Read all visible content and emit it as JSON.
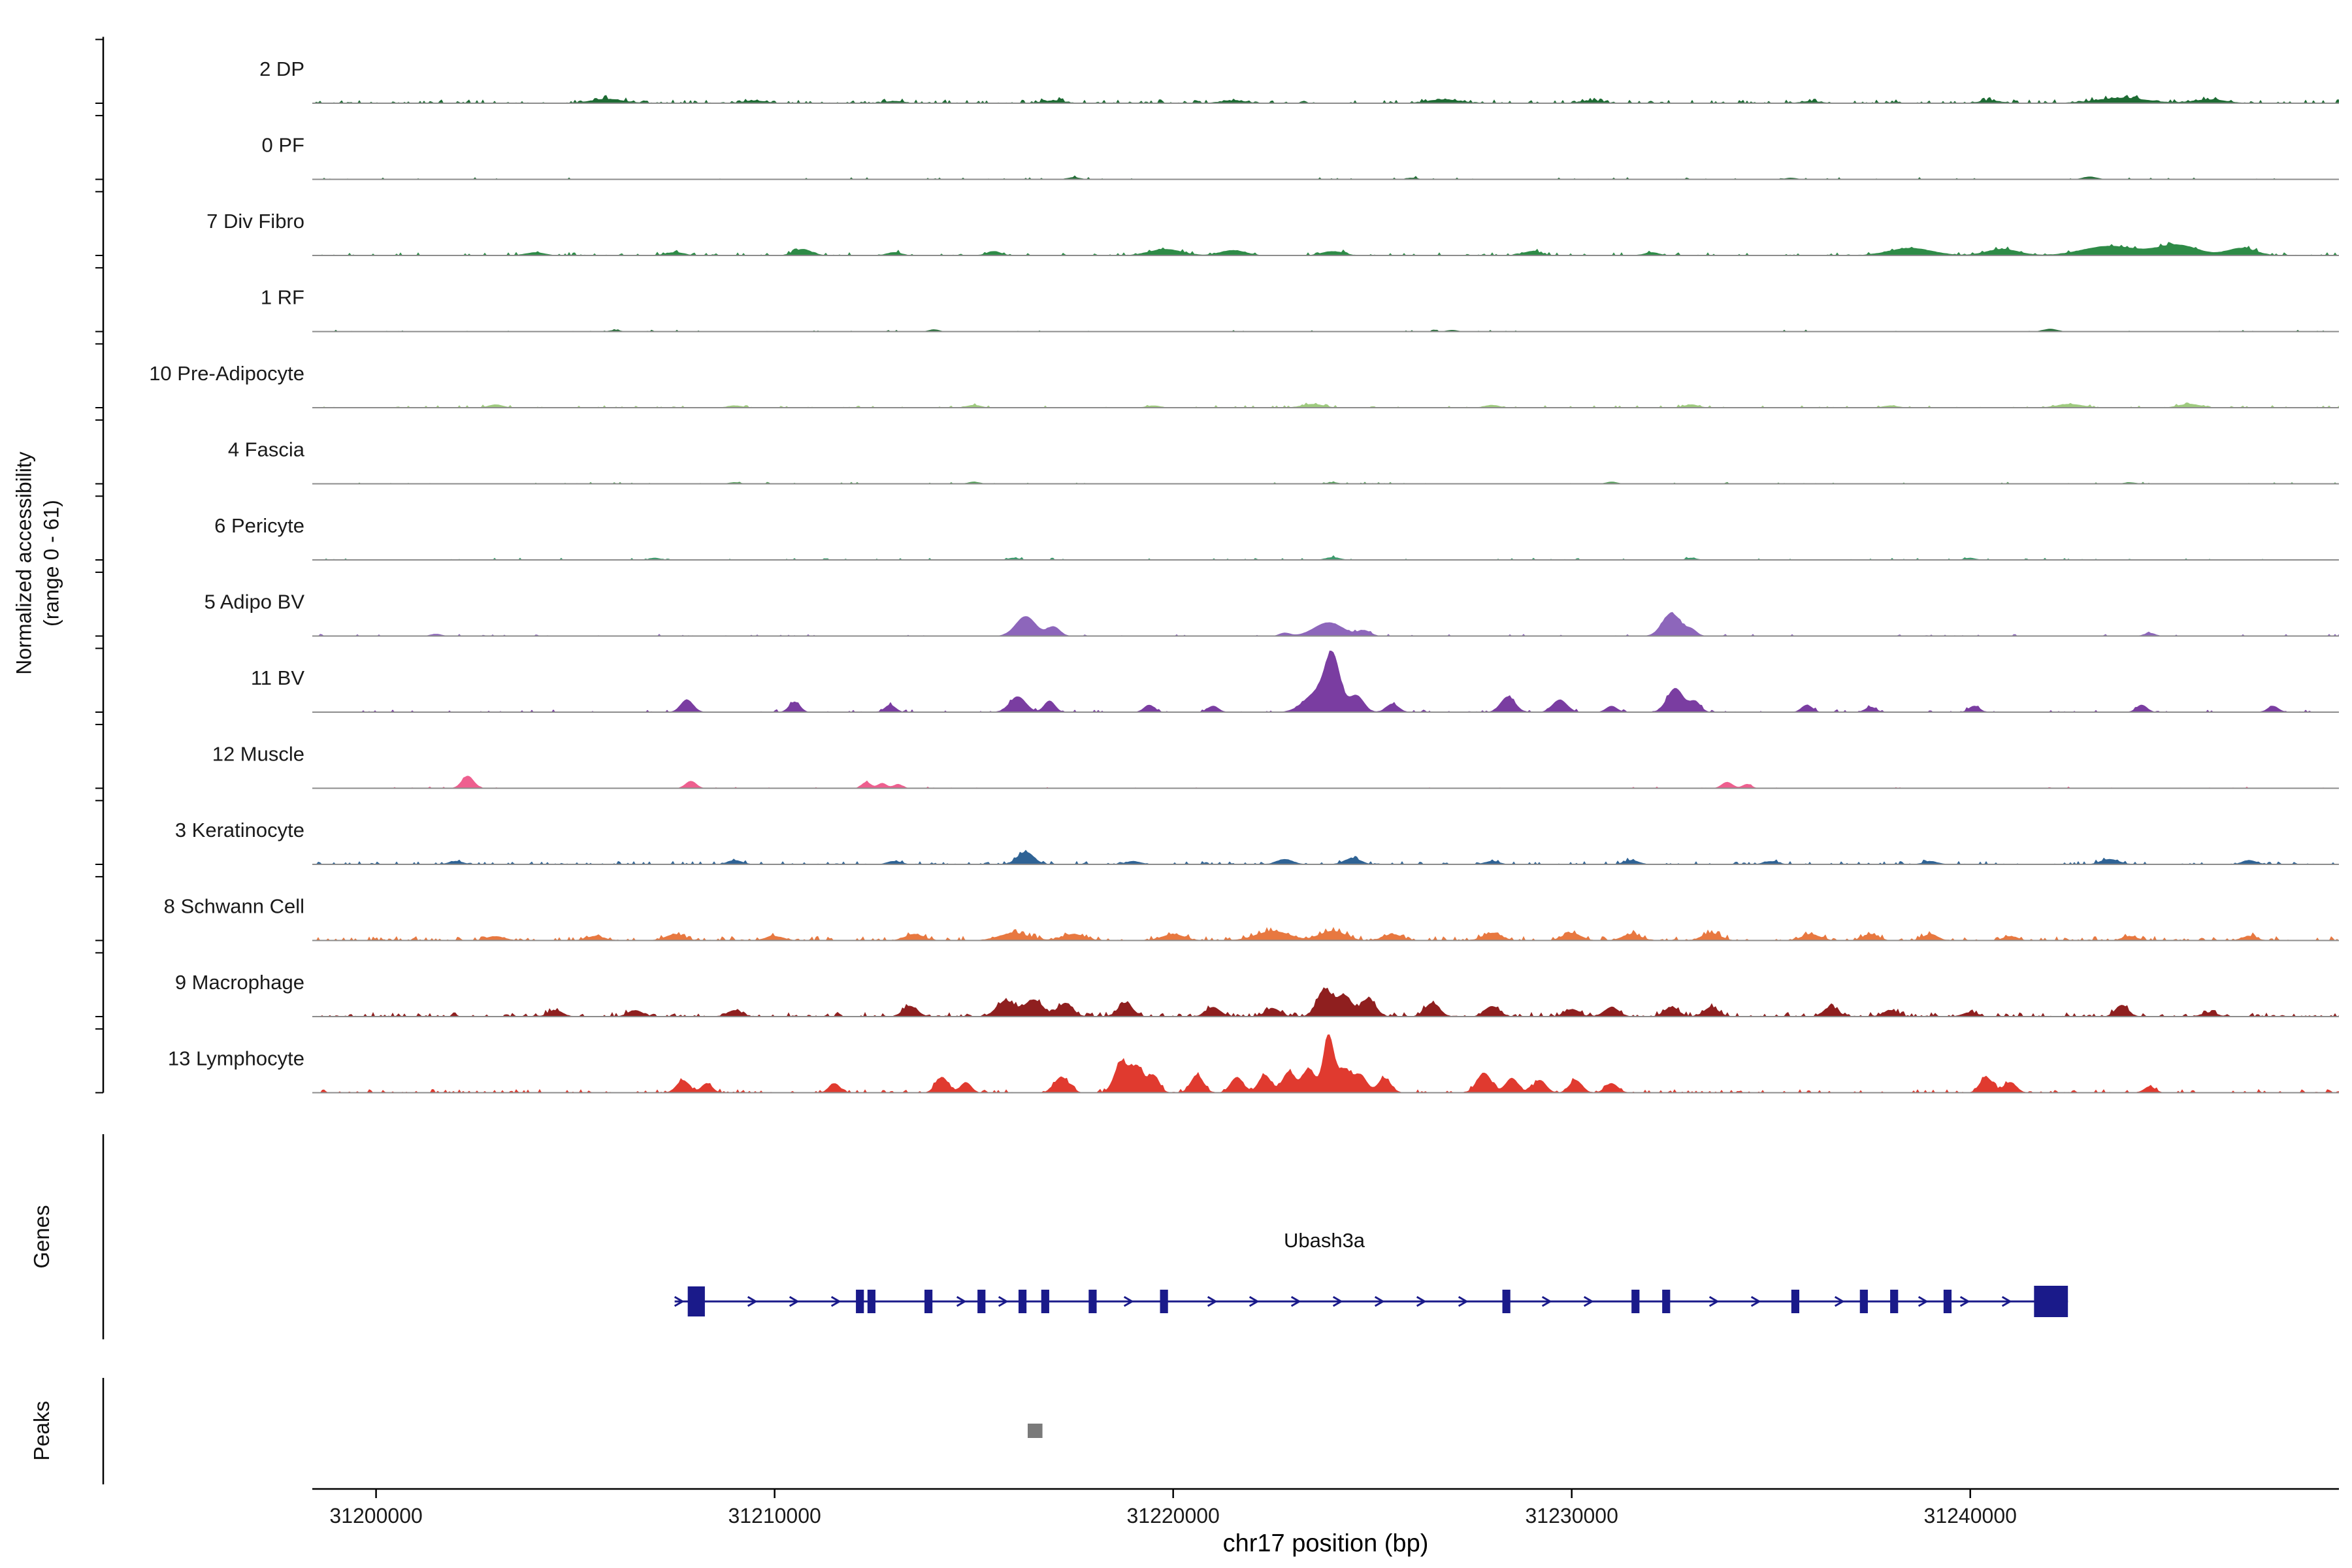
{
  "y_axis": {
    "title_line1": "Normalized accessibility",
    "title_line2": "(range 0 - 61)"
  },
  "x_axis": {
    "title": "chr17 position (bp)",
    "ticks": [
      {
        "pos": 31200000,
        "label": "31200000"
      },
      {
        "pos": 31210000,
        "label": "31210000"
      },
      {
        "pos": 31220000,
        "label": "31220000"
      },
      {
        "pos": 31230000,
        "label": "31230000"
      },
      {
        "pos": 31240000,
        "label": "31240000"
      }
    ]
  },
  "sections": {
    "genes_label": "Genes",
    "peaks_label": "Peaks"
  },
  "chart_data": {
    "type": "area",
    "title": "",
    "region": {
      "chrom": "chr17",
      "start": 31198400,
      "end": 31249250
    },
    "value_range": [
      0,
      61
    ],
    "tracks": [
      {
        "label": "2 DP",
        "color": "#1d6b33",
        "noise": {
          "amp": 1.4,
          "density": 0.5
        },
        "peaks": [
          [
            31205800,
            4,
            900
          ],
          [
            31209500,
            2.5,
            600
          ],
          [
            31213000,
            2,
            500
          ],
          [
            31217000,
            2.5,
            600
          ],
          [
            31221500,
            2.5,
            700
          ],
          [
            31226800,
            3.5,
            900
          ],
          [
            31230500,
            2.5,
            600
          ],
          [
            31236000,
            2,
            500
          ],
          [
            31240500,
            2.5,
            600
          ],
          [
            31243800,
            5,
            1400
          ],
          [
            31246000,
            3.5,
            900
          ]
        ]
      },
      {
        "label": "0 PF",
        "color": "#256f38",
        "noise": {
          "amp": 0.8,
          "density": 0.12
        },
        "peaks": [
          [
            31217500,
            2,
            350
          ],
          [
            31226000,
            1.5,
            300
          ],
          [
            31235500,
            1.5,
            300
          ],
          [
            31243000,
            2.5,
            400
          ]
        ]
      },
      {
        "label": "7 Div Fibro",
        "color": "#2e8b47",
        "noise": {
          "amp": 1.2,
          "density": 0.3
        },
        "peaks": [
          [
            31204000,
            3,
            500
          ],
          [
            31207500,
            3,
            500
          ],
          [
            31210700,
            6,
            500
          ],
          [
            31213000,
            3,
            400
          ],
          [
            31215500,
            4,
            400
          ],
          [
            31219800,
            6,
            900
          ],
          [
            31221500,
            5,
            700
          ],
          [
            31224000,
            4,
            600
          ],
          [
            31229000,
            4,
            500
          ],
          [
            31232000,
            3,
            400
          ],
          [
            31238500,
            7,
            1200
          ],
          [
            31240800,
            6,
            900
          ],
          [
            31243500,
            9,
            1500
          ],
          [
            31245200,
            10,
            1100
          ],
          [
            31246800,
            7,
            800
          ]
        ]
      },
      {
        "label": "1 RF",
        "color": "#256f38",
        "noise": {
          "amp": 0.7,
          "density": 0.12
        },
        "peaks": [
          [
            31206000,
            1.5,
            300
          ],
          [
            31214000,
            2,
            300
          ],
          [
            31227000,
            1.5,
            300
          ],
          [
            31242000,
            2.5,
            400
          ]
        ]
      },
      {
        "label": "10 Pre-Adipocyte",
        "color": "#9fcb7f",
        "noise": {
          "amp": 0.9,
          "density": 0.2
        },
        "peaks": [
          [
            31203000,
            3,
            400
          ],
          [
            31209000,
            2,
            400
          ],
          [
            31215000,
            2.5,
            400
          ],
          [
            31219500,
            2,
            400
          ],
          [
            31223500,
            3.5,
            600
          ],
          [
            31228000,
            2.5,
            400
          ],
          [
            31233000,
            3,
            400
          ],
          [
            31238000,
            2,
            400
          ],
          [
            31242500,
            3.5,
            700
          ],
          [
            31245500,
            3.5,
            600
          ]
        ]
      },
      {
        "label": "4 Fascia",
        "color": "#57a05c",
        "noise": {
          "amp": 0.7,
          "density": 0.12
        },
        "peaks": [
          [
            31209000,
            1.5,
            300
          ],
          [
            31215000,
            2,
            300
          ],
          [
            31224000,
            1.5,
            300
          ],
          [
            31231000,
            2,
            300
          ],
          [
            31244000,
            1.5,
            300
          ]
        ]
      },
      {
        "label": "6 Pericyte",
        "color": "#3e9b6e",
        "noise": {
          "amp": 0.8,
          "density": 0.15
        },
        "peaks": [
          [
            31207000,
            2,
            300
          ],
          [
            31216000,
            2,
            300
          ],
          [
            31224000,
            2.5,
            400
          ],
          [
            31233000,
            2,
            300
          ],
          [
            31240000,
            2,
            300
          ]
        ]
      },
      {
        "label": "5 Adipo BV",
        "color": "#8d66bb",
        "noise": {
          "amp": 0.8,
          "density": 0.15
        },
        "peaks": [
          [
            31201500,
            2,
            300
          ],
          [
            31216300,
            19,
            550
          ],
          [
            31217000,
            9,
            350
          ],
          [
            31222800,
            3,
            300
          ],
          [
            31223900,
            13,
            800
          ],
          [
            31224800,
            5,
            350
          ],
          [
            31232500,
            22,
            500
          ],
          [
            31233000,
            6,
            300
          ],
          [
            31244500,
            3,
            300
          ]
        ]
      },
      {
        "label": "11 BV",
        "color": "#7a3da1",
        "noise": {
          "amp": 1.0,
          "density": 0.25
        },
        "peaks": [
          [
            31207800,
            12,
            350
          ],
          [
            31210500,
            10,
            300
          ],
          [
            31212900,
            7,
            300
          ],
          [
            31216100,
            15,
            450
          ],
          [
            31216900,
            11,
            300
          ],
          [
            31219400,
            7,
            300
          ],
          [
            31221000,
            6,
            300
          ],
          [
            31223600,
            18,
            700
          ],
          [
            31224000,
            50,
            420
          ],
          [
            31224600,
            16,
            400
          ],
          [
            31225500,
            8,
            350
          ],
          [
            31228400,
            15,
            400
          ],
          [
            31229700,
            12,
            400
          ],
          [
            31231000,
            6,
            300
          ],
          [
            31232600,
            23,
            450
          ],
          [
            31233100,
            10,
            300
          ],
          [
            31235900,
            7,
            300
          ],
          [
            31237500,
            5,
            300
          ],
          [
            31240100,
            6,
            300
          ],
          [
            31244300,
            7,
            300
          ],
          [
            31247600,
            6,
            300
          ]
        ]
      },
      {
        "label": "12 Muscle",
        "color": "#ee5f8f",
        "noise": {
          "amp": 0.6,
          "density": 0.1
        },
        "peaks": [
          [
            31202300,
            12,
            330
          ],
          [
            31207900,
            7,
            300
          ],
          [
            31212300,
            6,
            250
          ],
          [
            31212700,
            5,
            250
          ],
          [
            31213100,
            4,
            250
          ],
          [
            31233900,
            6,
            300
          ],
          [
            31234400,
            4,
            250
          ]
        ]
      },
      {
        "label": "3 Keratinocyte",
        "color": "#2f6395",
        "noise": {
          "amp": 1.2,
          "density": 0.35
        },
        "peaks": [
          [
            31202000,
            3,
            400
          ],
          [
            31209000,
            4,
            400
          ],
          [
            31213000,
            3,
            400
          ],
          [
            31216300,
            12,
            450
          ],
          [
            31219000,
            3,
            400
          ],
          [
            31222800,
            5,
            450
          ],
          [
            31224500,
            6,
            450
          ],
          [
            31228000,
            3,
            400
          ],
          [
            31231500,
            4,
            400
          ],
          [
            31235000,
            3,
            400
          ],
          [
            31239000,
            3,
            400
          ],
          [
            31243500,
            5,
            500
          ],
          [
            31247000,
            4,
            400
          ]
        ]
      },
      {
        "label": "8 Schwann Cell",
        "color": "#e87840",
        "noise": {
          "amp": 1.6,
          "density": 0.5
        },
        "peaks": [
          [
            31203000,
            4,
            500
          ],
          [
            31205500,
            4,
            500
          ],
          [
            31207500,
            6,
            500
          ],
          [
            31210000,
            4,
            500
          ],
          [
            31213500,
            6,
            500
          ],
          [
            31216000,
            7,
            800
          ],
          [
            31217500,
            6,
            600
          ],
          [
            31220000,
            6,
            600
          ],
          [
            31222500,
            9,
            900
          ],
          [
            31224000,
            9,
            700
          ],
          [
            31225500,
            6,
            500
          ],
          [
            31228000,
            7,
            500
          ],
          [
            31230000,
            7,
            500
          ],
          [
            31231500,
            6,
            500
          ],
          [
            31233500,
            7,
            500
          ],
          [
            31236000,
            6,
            500
          ],
          [
            31237500,
            6,
            400
          ],
          [
            31239000,
            6,
            400
          ],
          [
            31241000,
            4,
            400
          ],
          [
            31244000,
            4,
            400
          ],
          [
            31247000,
            4,
            400
          ]
        ]
      },
      {
        "label": "9 Macrophage",
        "color": "#8f1f1f",
        "noise": {
          "amp": 1.6,
          "density": 0.5
        },
        "peaks": [
          [
            31204500,
            6,
            400
          ],
          [
            31206500,
            6,
            400
          ],
          [
            31209000,
            6,
            400
          ],
          [
            31213400,
            10,
            400
          ],
          [
            31215800,
            15,
            500
          ],
          [
            31216500,
            16,
            500
          ],
          [
            31217300,
            13,
            400
          ],
          [
            31218800,
            13,
            400
          ],
          [
            31221000,
            9,
            400
          ],
          [
            31222500,
            8,
            400
          ],
          [
            31223800,
            26,
            420
          ],
          [
            31224300,
            20,
            400
          ],
          [
            31224900,
            17,
            400
          ],
          [
            31226500,
            13,
            400
          ],
          [
            31228000,
            10,
            400
          ],
          [
            31230000,
            7,
            400
          ],
          [
            31231000,
            9,
            400
          ],
          [
            31232500,
            9,
            400
          ],
          [
            31233500,
            9,
            400
          ],
          [
            31236500,
            9,
            400
          ],
          [
            31238000,
            6,
            400
          ],
          [
            31240000,
            4,
            400
          ],
          [
            31243800,
            11,
            350
          ],
          [
            31246000,
            4,
            400
          ]
        ]
      },
      {
        "label": "13 Lymphocyte",
        "color": "#e03a2f",
        "noise": {
          "amp": 1.3,
          "density": 0.4
        },
        "peaks": [
          [
            31207700,
            12,
            350
          ],
          [
            31208300,
            9,
            300
          ],
          [
            31211500,
            9,
            300
          ],
          [
            31214200,
            15,
            350
          ],
          [
            31214800,
            10,
            300
          ],
          [
            31217200,
            15,
            400
          ],
          [
            31218700,
            30,
            380
          ],
          [
            31219100,
            24,
            320
          ],
          [
            31219500,
            17,
            320
          ],
          [
            31220600,
            17,
            350
          ],
          [
            31221600,
            15,
            350
          ],
          [
            31222300,
            17,
            350
          ],
          [
            31222900,
            20,
            350
          ],
          [
            31223400,
            23,
            350
          ],
          [
            31223900,
            55,
            300
          ],
          [
            31224300,
            22,
            350
          ],
          [
            31224700,
            17,
            350
          ],
          [
            31225300,
            14,
            350
          ],
          [
            31227800,
            19,
            400
          ],
          [
            31228500,
            14,
            350
          ],
          [
            31229200,
            12,
            350
          ],
          [
            31230100,
            12,
            350
          ],
          [
            31231000,
            9,
            350
          ],
          [
            31240400,
            15,
            350
          ],
          [
            31241000,
            10,
            350
          ],
          [
            31244500,
            6,
            300
          ]
        ]
      }
    ],
    "gene": {
      "name": "Ubash3a",
      "strand": "+",
      "start": 31207820,
      "end": 31242450,
      "color": "#1a1a8a",
      "exon_start": [
        31207820,
        31208250
      ],
      "exons_small": [
        31212140,
        31212430,
        31213860,
        31215190,
        31216220,
        31216790,
        31217980,
        31219770,
        31228360,
        31231600,
        31232370,
        31235610,
        31237330,
        31238090,
        31239430
      ],
      "exon_end": [
        31241600,
        31242450
      ]
    },
    "peaks_track": {
      "color": "#7a7a7a",
      "intervals": [
        {
          "start": 31216350,
          "end": 31216720
        }
      ]
    }
  }
}
